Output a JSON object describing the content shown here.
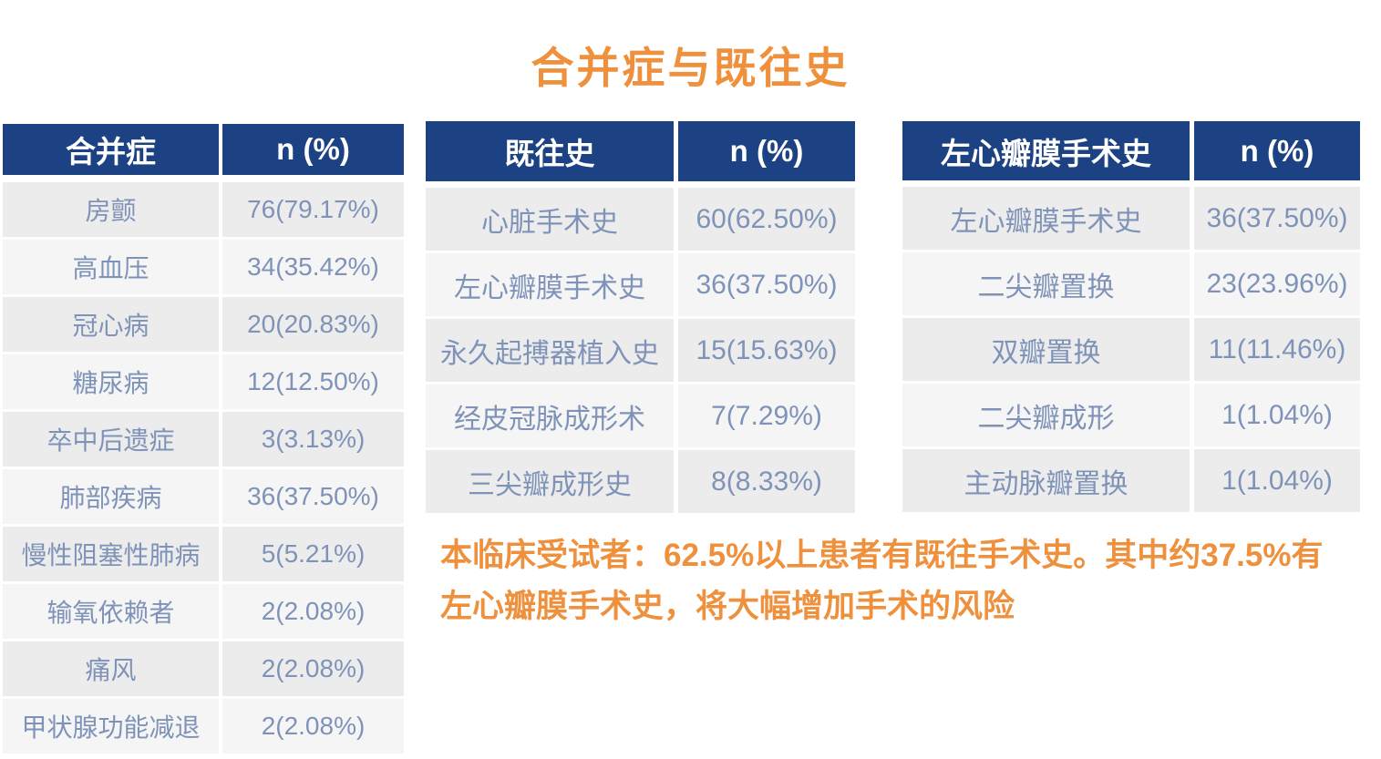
{
  "page_title": "合并症与既往史",
  "tables": [
    {
      "name": "comorbidity",
      "headers": [
        "合并症",
        "n (%)"
      ],
      "rows": [
        [
          "房颤",
          "76(79.17%)"
        ],
        [
          "高血压",
          "34(35.42%)"
        ],
        [
          "冠心病",
          "20(20.83%)"
        ],
        [
          "糖尿病",
          "12(12.50%)"
        ],
        [
          "卒中后遗症",
          "3(3.13%)"
        ],
        [
          "肺部疾病",
          "36(37.50%)"
        ],
        [
          "慢性阻塞性肺病",
          "5(5.21%)"
        ],
        [
          "输氧依赖者",
          "2(2.08%)"
        ],
        [
          "痛风",
          "2(2.08%)"
        ],
        [
          "甲状腺功能减退",
          "2(2.08%)"
        ]
      ]
    },
    {
      "name": "past-history",
      "headers": [
        "既往史",
        "n (%)"
      ],
      "rows": [
        [
          "心脏手术史",
          "60(62.50%)"
        ],
        [
          "左心瓣膜手术史",
          "36(37.50%)"
        ],
        [
          "永久起搏器植入史",
          "15(15.63%)"
        ],
        [
          "经皮冠脉成形术",
          "7(7.29%)"
        ],
        [
          "三尖瓣成形史",
          "8(8.33%)"
        ]
      ]
    },
    {
      "name": "left-valve-surgery",
      "headers": [
        "左心瓣膜手术史",
        "n (%)"
      ],
      "rows": [
        [
          "左心瓣膜手术史",
          "36(37.50%)"
        ],
        [
          "二尖瓣置换",
          "23(23.96%)"
        ],
        [
          "双瓣置换",
          "11(11.46%)"
        ],
        [
          "二尖瓣成形",
          "1(1.04%)"
        ],
        [
          "主动脉瓣置换",
          "1(1.04%)"
        ]
      ]
    }
  ],
  "note": {
    "line1": "本临床受试者：62.5%以上患者有既往手术史。其中约37.5%有",
    "line2": "左心瓣膜手术史，将大幅增加手术的风险"
  },
  "colors": {
    "header_bg": "#1c4284",
    "header_text": "#ffffff",
    "row_bg_a": "#ececec",
    "row_bg_b": "#f5f5f5",
    "cell_text": "#7f93b9",
    "accent_orange": "#ef903d",
    "background": "#ffffff"
  }
}
